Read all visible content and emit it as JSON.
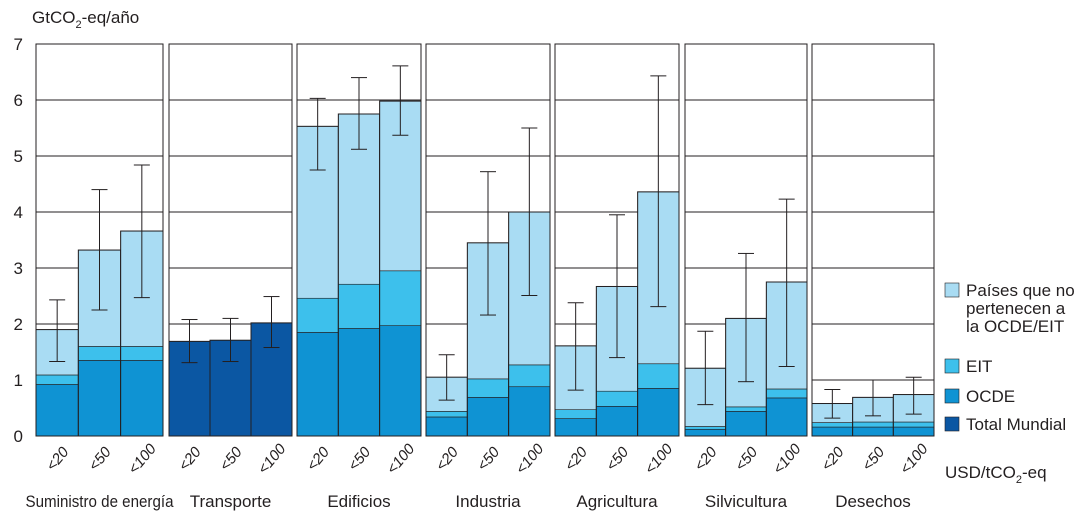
{
  "chart_data": {
    "type": "bar",
    "stacked": true,
    "ylabel": "GtCO2-eq/año",
    "xunit": "USD/tCO2-eq",
    "ylim": [
      0,
      7
    ],
    "yticks": [
      0,
      1,
      2,
      3,
      4,
      5,
      6,
      7
    ],
    "grid": true,
    "legend_position": "right",
    "price_labels": [
      "<20",
      "<50",
      "<100"
    ],
    "colors": {
      "non_oecd": "#a9dcf3",
      "eit": "#3dc0ec",
      "oecd": "#0f93d3",
      "world": "#0b57a3"
    },
    "legend": [
      {
        "key": "non_oecd",
        "label": "Países que no pertenecen a la OCDE/EIT"
      },
      {
        "key": "eit",
        "label": "EIT"
      },
      {
        "key": "oecd",
        "label": "OCDE"
      },
      {
        "key": "world",
        "label": "Total Mundial"
      }
    ],
    "sectors": [
      {
        "name": "Suministro de energía",
        "bars": [
          {
            "price": "<20",
            "oecd": 0.92,
            "eit": 0.17,
            "non_oecd": 0.81,
            "err_low": 1.33,
            "err_high": 2.43
          },
          {
            "price": "<50",
            "oecd": 1.35,
            "eit": 0.25,
            "non_oecd": 1.72,
            "err_low": 2.25,
            "err_high": 4.4
          },
          {
            "price": "<100",
            "oecd": 1.35,
            "eit": 0.25,
            "non_oecd": 2.06,
            "err_low": 2.47,
            "err_high": 4.84
          }
        ]
      },
      {
        "name": "Transporte",
        "bars": [
          {
            "price": "<20",
            "world": 1.69,
            "err_low": 1.31,
            "err_high": 2.08
          },
          {
            "price": "<50",
            "world": 1.71,
            "err_low": 1.33,
            "err_high": 2.1
          },
          {
            "price": "<100",
            "world": 2.02,
            "err_low": 1.58,
            "err_high": 2.49
          }
        ]
      },
      {
        "name": "Edificios",
        "bars": [
          {
            "price": "<20",
            "oecd": 1.85,
            "eit": 0.61,
            "non_oecd": 3.07,
            "err_low": 4.75,
            "err_high": 6.03
          },
          {
            "price": "<50",
            "oecd": 1.92,
            "eit": 0.79,
            "non_oecd": 3.04,
            "err_low": 5.12,
            "err_high": 6.4
          },
          {
            "price": "<100",
            "oecd": 1.97,
            "eit": 0.98,
            "non_oecd": 3.03,
            "err_low": 5.37,
            "err_high": 6.61
          }
        ]
      },
      {
        "name": "Industria",
        "bars": [
          {
            "price": "<20",
            "oecd": 0.34,
            "eit": 0.1,
            "non_oecd": 0.61,
            "err_low": 0.64,
            "err_high": 1.45
          },
          {
            "price": "<50",
            "oecd": 0.69,
            "eit": 0.33,
            "non_oecd": 2.43,
            "err_low": 2.16,
            "err_high": 4.72
          },
          {
            "price": "<100",
            "oecd": 0.88,
            "eit": 0.39,
            "non_oecd": 2.73,
            "err_low": 2.51,
            "err_high": 5.5
          }
        ]
      },
      {
        "name": "Agricultura",
        "bars": [
          {
            "price": "<20",
            "oecd": 0.31,
            "eit": 0.16,
            "non_oecd": 1.14,
            "err_low": 0.82,
            "err_high": 2.38
          },
          {
            "price": "<50",
            "oecd": 0.53,
            "eit": 0.27,
            "non_oecd": 1.87,
            "err_low": 1.4,
            "err_high": 3.95
          },
          {
            "price": "<100",
            "oecd": 0.85,
            "eit": 0.44,
            "non_oecd": 3.07,
            "err_low": 2.31,
            "err_high": 6.43
          }
        ]
      },
      {
        "name": "Silvicultura",
        "bars": [
          {
            "price": "<20",
            "oecd": 0.12,
            "eit": 0.05,
            "non_oecd": 1.04,
            "err_low": 0.56,
            "err_high": 1.87
          },
          {
            "price": "<50",
            "oecd": 0.44,
            "eit": 0.08,
            "non_oecd": 1.58,
            "err_low": 0.97,
            "err_high": 3.26
          },
          {
            "price": "<100",
            "oecd": 0.68,
            "eit": 0.16,
            "non_oecd": 1.91,
            "err_low": 1.24,
            "err_high": 4.23
          }
        ]
      },
      {
        "name": "Desechos",
        "bars": [
          {
            "price": "<20",
            "oecd": 0.16,
            "eit": 0.08,
            "non_oecd": 0.34,
            "err_low": 0.32,
            "err_high": 0.83
          },
          {
            "price": "<50",
            "oecd": 0.16,
            "eit": 0.09,
            "non_oecd": 0.44,
            "err_low": 0.36,
            "err_high": 1.0
          },
          {
            "price": "<100",
            "oecd": 0.16,
            "eit": 0.09,
            "non_oecd": 0.49,
            "err_low": 0.39,
            "err_high": 1.05
          }
        ]
      }
    ]
  }
}
